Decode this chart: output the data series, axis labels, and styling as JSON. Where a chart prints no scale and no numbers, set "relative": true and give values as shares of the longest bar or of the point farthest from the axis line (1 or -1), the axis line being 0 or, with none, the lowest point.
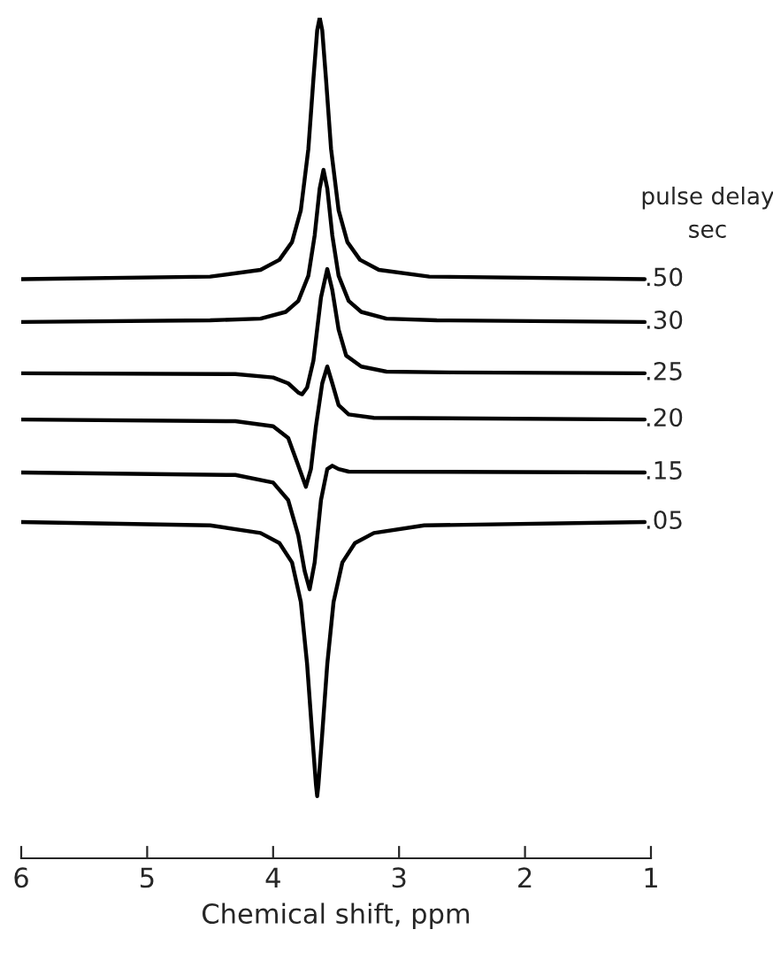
{
  "chart_data": {
    "type": "line",
    "xlabel": "Chemical shift, ppm",
    "legend_title": "pulse delay\nsec",
    "relative": true,
    "legend": false,
    "grid": false,
    "marker": "none",
    "line_style": "solid",
    "xlim": [
      6,
      1
    ],
    "xticks": [
      6,
      5,
      4,
      3,
      2,
      1
    ],
    "series": [
      {
        "name": ".50",
        "color": "#000000",
        "x": [
          6.0,
          4.5,
          4.1,
          3.95,
          3.85,
          3.78,
          3.72,
          3.68,
          3.65,
          3.63,
          3.61,
          3.58,
          3.54,
          3.48,
          3.41,
          3.31,
          3.16,
          2.76,
          1.05
        ],
        "values": [
          0.689,
          0.692,
          0.7,
          0.712,
          0.733,
          0.771,
          0.844,
          0.927,
          0.985,
          1.0,
          0.985,
          0.927,
          0.844,
          0.771,
          0.733,
          0.712,
          0.7,
          0.692,
          0.689
        ]
      },
      {
        "name": ".30",
        "color": "#000000",
        "x": [
          6.0,
          4.5,
          4.1,
          3.9,
          3.8,
          3.72,
          3.67,
          3.63,
          3.6,
          3.57,
          3.53,
          3.48,
          3.4,
          3.3,
          3.1,
          2.7,
          1.05
        ],
        "values": [
          0.638,
          0.64,
          0.642,
          0.65,
          0.663,
          0.693,
          0.741,
          0.797,
          0.819,
          0.797,
          0.741,
          0.693,
          0.663,
          0.65,
          0.642,
          0.64,
          0.638
        ]
      },
      {
        "name": ".25",
        "color": "#000000",
        "x": [
          6.0,
          4.3,
          4.0,
          3.88,
          3.8,
          3.77,
          3.73,
          3.68,
          3.62,
          3.57,
          3.53,
          3.48,
          3.42,
          3.3,
          3.1,
          2.6,
          1.05
        ],
        "values": [
          0.577,
          0.576,
          0.572,
          0.565,
          0.554,
          0.552,
          0.56,
          0.592,
          0.667,
          0.701,
          0.676,
          0.629,
          0.598,
          0.585,
          0.579,
          0.578,
          0.577
        ]
      },
      {
        "name": ".20",
        "color": "#000000",
        "x": [
          6.0,
          4.3,
          4.0,
          3.88,
          3.8,
          3.74,
          3.7,
          3.66,
          3.61,
          3.57,
          3.53,
          3.48,
          3.4,
          3.2,
          1.05
        ],
        "values": [
          0.522,
          0.52,
          0.514,
          0.5,
          0.467,
          0.442,
          0.463,
          0.514,
          0.565,
          0.585,
          0.565,
          0.539,
          0.528,
          0.524,
          0.522
        ]
      },
      {
        "name": ".15",
        "color": "#000000",
        "x": [
          6.0,
          4.3,
          4.0,
          3.88,
          3.8,
          3.75,
          3.71,
          3.67,
          3.62,
          3.57,
          3.53,
          3.48,
          3.4,
          1.05
        ],
        "values": [
          0.459,
          0.456,
          0.447,
          0.426,
          0.384,
          0.342,
          0.32,
          0.352,
          0.426,
          0.463,
          0.467,
          0.463,
          0.46,
          0.459
        ]
      },
      {
        "name": ".05",
        "color": "#000000",
        "x": [
          6.0,
          4.5,
          4.1,
          3.95,
          3.85,
          3.78,
          3.73,
          3.69,
          3.66,
          3.65,
          3.64,
          3.61,
          3.57,
          3.52,
          3.45,
          3.35,
          3.2,
          2.8,
          1.05
        ],
        "values": [
          0.4,
          0.396,
          0.387,
          0.375,
          0.352,
          0.305,
          0.231,
          0.148,
          0.088,
          0.074,
          0.088,
          0.148,
          0.231,
          0.305,
          0.352,
          0.375,
          0.387,
          0.396,
          0.4
        ]
      }
    ]
  }
}
